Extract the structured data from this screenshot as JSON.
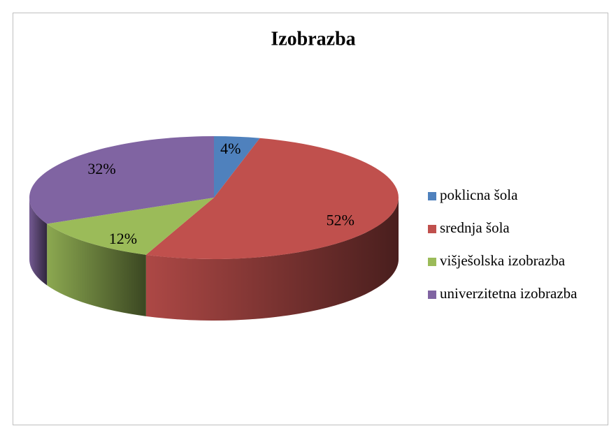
{
  "chart_data": {
    "type": "pie3d",
    "title": "Izobrazba",
    "categories": [
      "poklicna šola",
      "srednja šola",
      "višješolska izobrazba",
      "univerzitetna izobrazba"
    ],
    "values": [
      4,
      52,
      12,
      32
    ],
    "value_labels": [
      "4%",
      "52%",
      "12%",
      "32%"
    ],
    "colors": [
      "#4f81bd",
      "#c0504d",
      "#9bbb59",
      "#8064a2"
    ],
    "legend": "right"
  }
}
